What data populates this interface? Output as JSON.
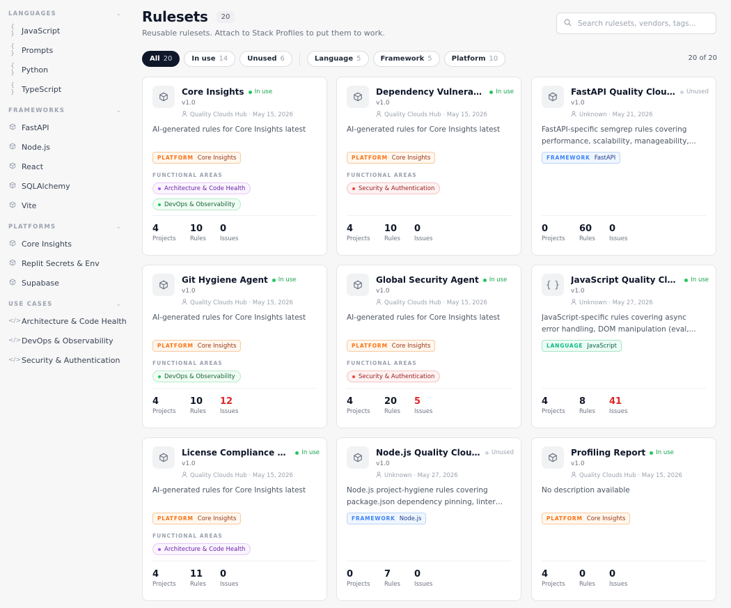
{
  "sidebar": {
    "sections": [
      {
        "title": "LANGUAGES",
        "items": [
          {
            "label": "JavaScript",
            "icon": "braces-icon"
          },
          {
            "label": "Prompts",
            "icon": "braces-icon"
          },
          {
            "label": "Python",
            "icon": "braces-icon"
          },
          {
            "label": "TypeScript",
            "icon": "braces-icon"
          }
        ]
      },
      {
        "title": "FRAMEWORKS",
        "items": [
          {
            "label": "FastAPI",
            "icon": "package-icon"
          },
          {
            "label": "Node.js",
            "icon": "package-icon"
          },
          {
            "label": "React",
            "icon": "package-icon"
          },
          {
            "label": "SQLAlchemy",
            "icon": "package-icon"
          },
          {
            "label": "Vite",
            "icon": "package-icon"
          }
        ]
      },
      {
        "title": "PLATFORMS",
        "items": [
          {
            "label": "Core Insights",
            "icon": "package-icon"
          },
          {
            "label": "Replit Secrets & Env",
            "icon": "package-icon"
          },
          {
            "label": "Supabase",
            "icon": "package-icon"
          }
        ]
      },
      {
        "title": "USE CASES",
        "items": [
          {
            "label": "Architecture & Code Health",
            "icon": "code-icon"
          },
          {
            "label": "DevOps & Observability",
            "icon": "code-icon"
          },
          {
            "label": "Security & Authentication",
            "icon": "code-icon"
          }
        ]
      }
    ]
  },
  "header": {
    "title": "Rulesets",
    "count": "20",
    "subtitle": "Reusable rulesets. Attach to Stack Profiles to put them to work.",
    "search_placeholder": "Search rulesets, vendors, tags..."
  },
  "filters": {
    "status": [
      {
        "label": "All",
        "count": "20",
        "active": true
      },
      {
        "label": "In use",
        "count": "14",
        "active": false
      },
      {
        "label": "Unused",
        "count": "6",
        "active": false
      }
    ],
    "types": [
      {
        "label": "Language",
        "count": "5"
      },
      {
        "label": "Framework",
        "count": "5"
      },
      {
        "label": "Platform",
        "count": "10"
      }
    ],
    "result_count": "20 of 20"
  },
  "labels": {
    "functional_areas": "FUNCTIONAL AREAS",
    "projects": "Projects",
    "rules": "Rules",
    "issues": "Issues"
  },
  "rulesets": [
    {
      "name": "Core Insights",
      "status": "In use",
      "version": "v1.0",
      "author": "Quality Clouds Hub",
      "date": "May 15, 2026",
      "icon": "package-icon",
      "description": "AI-generated rules for Core Insights latest",
      "tag": {
        "kind": "PLATFORM",
        "value": "Core Insights",
        "type": "platform"
      },
      "areas": [
        {
          "label": "Architecture & Code Health",
          "type": "arch"
        },
        {
          "label": "DevOps & Observability",
          "type": "devops"
        }
      ],
      "projects": "4",
      "rules": "10",
      "issues": "0",
      "issues_alert": false
    },
    {
      "name": "Dependency Vulnerabilit...",
      "status": "In use",
      "version": "v1.0",
      "author": "Quality Clouds Hub",
      "date": "May 15, 2026",
      "icon": "package-icon",
      "description": "AI-generated rules for Core Insights latest",
      "tag": {
        "kind": "PLATFORM",
        "value": "Core Insights",
        "type": "platform"
      },
      "areas": [
        {
          "label": "Security & Authentication",
          "type": "sec"
        }
      ],
      "projects": "4",
      "rules": "10",
      "issues": "0",
      "issues_alert": false
    },
    {
      "name": "FastAPI Quality Clouds ...",
      "status": "Unused",
      "version": "v1.0",
      "author": "Unknown",
      "date": "May 21, 2026",
      "icon": "package-icon",
      "description": "FastAPI-specific semgrep rules covering performance, scalability, manageability,...",
      "tag": {
        "kind": "FRAMEWORK",
        "value": "FastAPI",
        "type": "framework"
      },
      "areas": [],
      "projects": "0",
      "rules": "60",
      "issues": "0",
      "issues_alert": false
    },
    {
      "name": "Git Hygiene Agent",
      "status": "In use",
      "version": "v1.0",
      "author": "Quality Clouds Hub",
      "date": "May 15, 2026",
      "icon": "package-icon",
      "description": "AI-generated rules for Core Insights latest",
      "tag": {
        "kind": "PLATFORM",
        "value": "Core Insights",
        "type": "platform"
      },
      "areas": [
        {
          "label": "DevOps & Observability",
          "type": "devops"
        }
      ],
      "projects": "4",
      "rules": "10",
      "issues": "12",
      "issues_alert": true
    },
    {
      "name": "Global Security Agent",
      "status": "In use",
      "version": "v1.0",
      "author": "Quality Clouds Hub",
      "date": "May 15, 2026",
      "icon": "package-icon",
      "description": "AI-generated rules for Core Insights latest",
      "tag": {
        "kind": "PLATFORM",
        "value": "Core Insights",
        "type": "platform"
      },
      "areas": [
        {
          "label": "Security & Authentication",
          "type": "sec"
        }
      ],
      "projects": "4",
      "rules": "20",
      "issues": "5",
      "issues_alert": true
    },
    {
      "name": "JavaScript Quality Cloud...",
      "status": "In use",
      "version": "v1.0",
      "author": "Unknown",
      "date": "May 27, 2026",
      "icon": "braces-icon",
      "description": "JavaScript-specific rules covering async error handling, DOM manipulation (eval,...",
      "tag": {
        "kind": "LANGUAGE",
        "value": "JavaScript",
        "type": "language"
      },
      "areas": [],
      "projects": "4",
      "rules": "8",
      "issues": "41",
      "issues_alert": true
    },
    {
      "name": "License Compliance Age...",
      "status": "In use",
      "version": "v1.0",
      "author": "Quality Clouds Hub",
      "date": "May 15, 2026",
      "icon": "package-icon",
      "description": "AI-generated rules for Core Insights latest",
      "tag": {
        "kind": "PLATFORM",
        "value": "Core Insights",
        "type": "platform"
      },
      "areas": [
        {
          "label": "Architecture & Code Health",
          "type": "arch"
        }
      ],
      "projects": "4",
      "rules": "11",
      "issues": "0",
      "issues_alert": false
    },
    {
      "name": "Node.js Quality Clouds ...",
      "status": "Unused",
      "version": "v1.0",
      "author": "Unknown",
      "date": "May 27, 2026",
      "icon": "package-icon",
      "description": "Node.js project-hygiene rules covering package.json dependency pinning, linter an...",
      "tag": {
        "kind": "FRAMEWORK",
        "value": "Node.js",
        "type": "framework"
      },
      "areas": [],
      "projects": "0",
      "rules": "7",
      "issues": "0",
      "issues_alert": false
    },
    {
      "name": "Profiling Report",
      "status": "In use",
      "version": "v1.0",
      "author": "Quality Clouds Hub",
      "date": "May 15, 2026",
      "icon": "package-icon",
      "description": "No description available",
      "tag": {
        "kind": "PLATFORM",
        "value": "Core Insights",
        "type": "platform"
      },
      "areas": [],
      "projects": "4",
      "rules": "0",
      "issues": "0",
      "issues_alert": false
    }
  ]
}
